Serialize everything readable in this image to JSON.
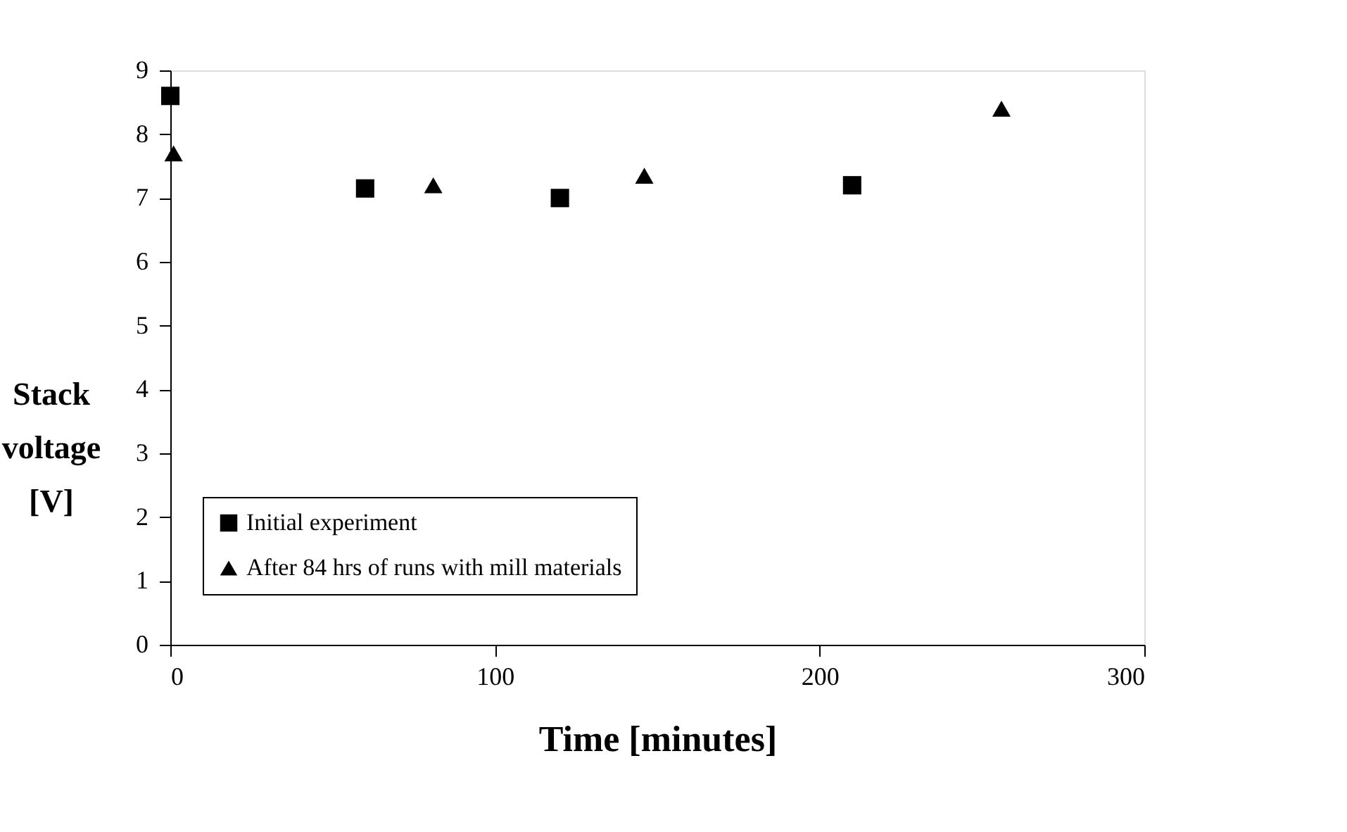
{
  "chart_data": {
    "type": "scatter",
    "xlabel": "Time [minutes]",
    "ylabel": "Stack voltage [V]",
    "xlim": [
      0,
      300
    ],
    "xticks": [
      0,
      100,
      200,
      300
    ],
    "ylim": [
      0,
      9
    ],
    "yticks": [
      0,
      1,
      2,
      3,
      4,
      5,
      6,
      7,
      8,
      9
    ],
    "grid": false,
    "legend": "bottom left",
    "series": [
      {
        "name": "Initial experiment",
        "color": "#000000",
        "marker": "square",
        "x": [
          0,
          60,
          120,
          210
        ],
        "values": [
          8.6,
          7.15,
          7.0,
          7.2
        ]
      },
      {
        "name": "After 84 hrs of runs with mill materials",
        "color": "#000000",
        "marker": "triangle",
        "x": [
          1,
          81,
          146,
          256
        ],
        "values": [
          7.7,
          7.2,
          7.35,
          8.4
        ]
      }
    ]
  }
}
